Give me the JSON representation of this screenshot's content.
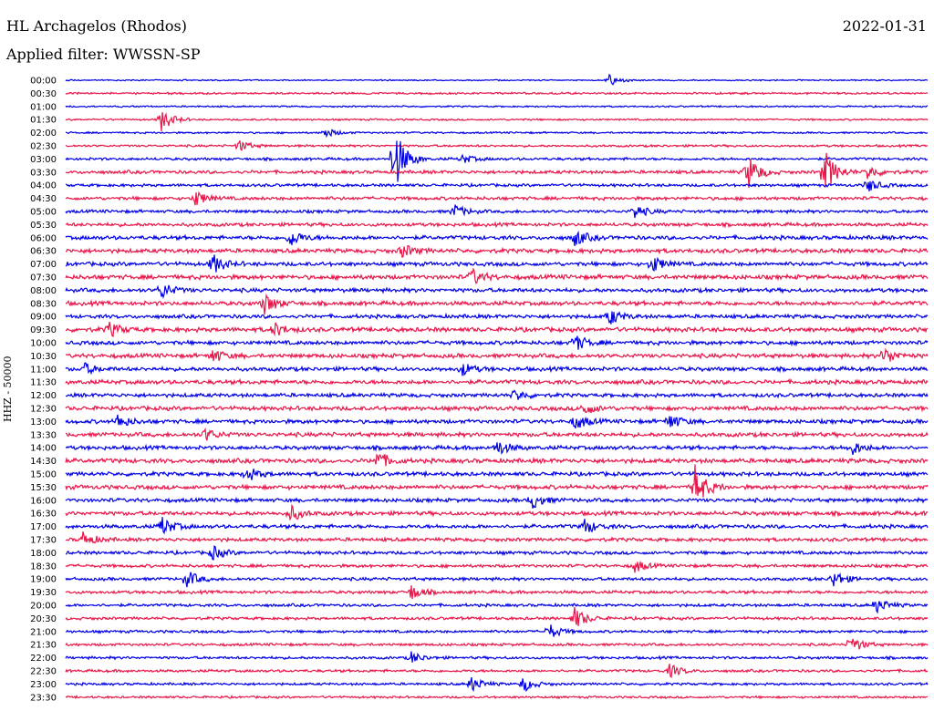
{
  "header": {
    "station": "HL Archagelos (Rhodos)",
    "date": "2022-01-31",
    "filter": "Applied filter: WWSSN-SP",
    "channel": "HHZ - 50000"
  },
  "colors": {
    "even_row": "#0000e6",
    "odd_row": "#e8174a",
    "text": "#000000"
  },
  "chart_data": {
    "type": "line",
    "title": "HL Archagelos (Rhodos)",
    "ylabel": "HHZ - 50000",
    "row_labels": [
      "00:00",
      "00:30",
      "01:00",
      "01:30",
      "02:00",
      "02:30",
      "03:00",
      "03:30",
      "04:00",
      "04:30",
      "05:00",
      "05:30",
      "06:00",
      "06:30",
      "07:00",
      "07:30",
      "08:00",
      "08:30",
      "09:00",
      "09:30",
      "10:00",
      "10:30",
      "11:00",
      "11:30",
      "12:00",
      "12:30",
      "13:00",
      "13:30",
      "14:00",
      "14:30",
      "15:00",
      "15:30",
      "16:00",
      "16:30",
      "17:00",
      "17:30",
      "18:00",
      "18:30",
      "19:00",
      "19:30",
      "20:00",
      "20:30",
      "21:00",
      "21:30",
      "22:00",
      "22:30",
      "23:00",
      "23:30"
    ],
    "row_colors": [
      "blue",
      "red"
    ],
    "noise_level": [
      0.6,
      0.9,
      0.7,
      0.8,
      0.8,
      1.0,
      1.2,
      1.5,
      1.3,
      1.5,
      1.4,
      1.6,
      1.8,
      1.9,
      1.8,
      2.0,
      1.8,
      1.9,
      1.7,
      2.0,
      1.8,
      1.9,
      1.8,
      1.9,
      1.7,
      1.9,
      1.8,
      1.9,
      1.8,
      2.0,
      1.8,
      1.9,
      1.7,
      1.8,
      1.7,
      1.6,
      1.5,
      1.4,
      1.4,
      1.4,
      1.3,
      1.3,
      1.2,
      1.2,
      1.2,
      1.2,
      1.1,
      1.0
    ],
    "events": [
      {
        "row": 0,
        "x": 0.63,
        "amp": 6
      },
      {
        "row": 3,
        "x": 0.11,
        "amp": 14
      },
      {
        "row": 4,
        "x": 0.3,
        "amp": 6
      },
      {
        "row": 5,
        "x": 0.2,
        "amp": 7
      },
      {
        "row": 6,
        "x": 0.38,
        "amp": 40
      },
      {
        "row": 6,
        "x": 0.46,
        "amp": 5
      },
      {
        "row": 7,
        "x": 0.79,
        "amp": 22
      },
      {
        "row": 7,
        "x": 0.88,
        "amp": 25
      },
      {
        "row": 7,
        "x": 0.93,
        "amp": 8
      },
      {
        "row": 8,
        "x": 0.93,
        "amp": 8
      },
      {
        "row": 9,
        "x": 0.15,
        "amp": 9
      },
      {
        "row": 10,
        "x": 0.45,
        "amp": 8
      },
      {
        "row": 10,
        "x": 0.66,
        "amp": 8
      },
      {
        "row": 12,
        "x": 0.26,
        "amp": 10
      },
      {
        "row": 12,
        "x": 0.59,
        "amp": 10
      },
      {
        "row": 13,
        "x": 0.39,
        "amp": 8
      },
      {
        "row": 14,
        "x": 0.17,
        "amp": 12
      },
      {
        "row": 14,
        "x": 0.68,
        "amp": 10
      },
      {
        "row": 15,
        "x": 0.47,
        "amp": 10
      },
      {
        "row": 16,
        "x": 0.11,
        "amp": 10
      },
      {
        "row": 17,
        "x": 0.23,
        "amp": 12
      },
      {
        "row": 18,
        "x": 0.63,
        "amp": 10
      },
      {
        "row": 19,
        "x": 0.05,
        "amp": 8
      },
      {
        "row": 19,
        "x": 0.24,
        "amp": 9
      },
      {
        "row": 20,
        "x": 0.59,
        "amp": 10
      },
      {
        "row": 21,
        "x": 0.17,
        "amp": 8
      },
      {
        "row": 21,
        "x": 0.95,
        "amp": 10
      },
      {
        "row": 22,
        "x": 0.02,
        "amp": 7
      },
      {
        "row": 22,
        "x": 0.46,
        "amp": 7
      },
      {
        "row": 24,
        "x": 0.52,
        "amp": 7
      },
      {
        "row": 25,
        "x": 0.6,
        "amp": 8
      },
      {
        "row": 26,
        "x": 0.06,
        "amp": 8
      },
      {
        "row": 26,
        "x": 0.59,
        "amp": 10
      },
      {
        "row": 26,
        "x": 0.7,
        "amp": 9
      },
      {
        "row": 27,
        "x": 0.16,
        "amp": 8
      },
      {
        "row": 28,
        "x": 0.5,
        "amp": 9
      },
      {
        "row": 28,
        "x": 0.91,
        "amp": 9
      },
      {
        "row": 29,
        "x": 0.36,
        "amp": 12
      },
      {
        "row": 30,
        "x": 0.21,
        "amp": 8
      },
      {
        "row": 31,
        "x": 0.73,
        "amp": 24
      },
      {
        "row": 32,
        "x": 0.54,
        "amp": 10
      },
      {
        "row": 33,
        "x": 0.26,
        "amp": 9
      },
      {
        "row": 34,
        "x": 0.11,
        "amp": 12
      },
      {
        "row": 34,
        "x": 0.6,
        "amp": 10
      },
      {
        "row": 35,
        "x": 0.02,
        "amp": 8
      },
      {
        "row": 36,
        "x": 0.17,
        "amp": 8
      },
      {
        "row": 37,
        "x": 0.66,
        "amp": 7
      },
      {
        "row": 38,
        "x": 0.14,
        "amp": 10
      },
      {
        "row": 38,
        "x": 0.89,
        "amp": 10
      },
      {
        "row": 39,
        "x": 0.4,
        "amp": 9
      },
      {
        "row": 40,
        "x": 0.94,
        "amp": 9
      },
      {
        "row": 41,
        "x": 0.59,
        "amp": 13
      },
      {
        "row": 42,
        "x": 0.56,
        "amp": 9
      },
      {
        "row": 43,
        "x": 0.91,
        "amp": 11
      },
      {
        "row": 44,
        "x": 0.4,
        "amp": 7
      },
      {
        "row": 45,
        "x": 0.7,
        "amp": 8
      },
      {
        "row": 46,
        "x": 0.47,
        "amp": 9
      },
      {
        "row": 46,
        "x": 0.53,
        "amp": 9
      }
    ]
  }
}
